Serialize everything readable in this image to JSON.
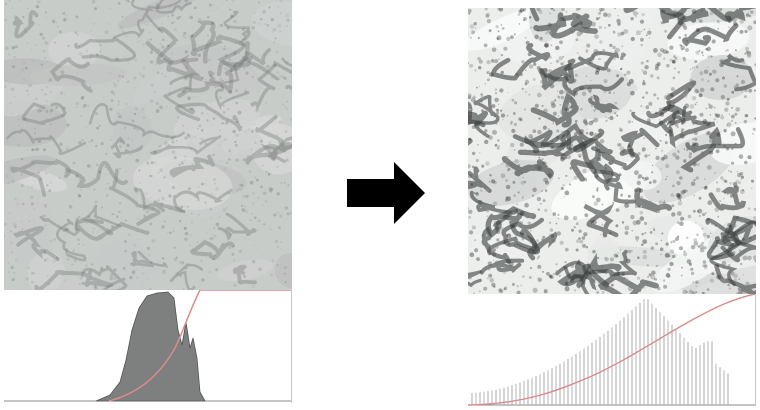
{
  "figure": {
    "left_panel": {
      "texture_style": "low-contrast",
      "texture_base_color": "#c7ccc9",
      "texture_edge_color": "#7b807f",
      "histogram_fill": "#7d807f",
      "cdf_color": "#d98b8b"
    },
    "transform_arrow": {
      "icon": "right-arrow-icon",
      "color": "#000000"
    },
    "right_panel": {
      "texture_style": "high-contrast",
      "texture_base_color": "#eceeec",
      "texture_edge_color": "#3f4442",
      "histogram_line_color": "#a9aaa9",
      "cdf_color": "#d98b8b"
    }
  }
}
